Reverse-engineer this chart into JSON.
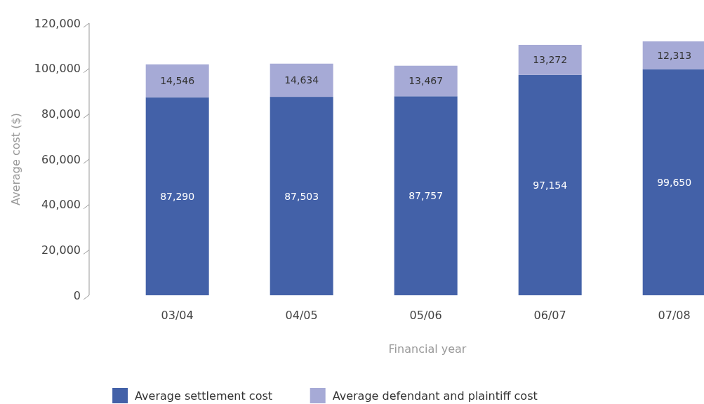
{
  "chart_data": {
    "type": "bar",
    "stacked": true,
    "xlabel": "Financial year",
    "ylabel": "Average cost ($)",
    "categories": [
      "03/04",
      "04/05",
      "05/06",
      "06/07",
      "07/08"
    ],
    "series": [
      {
        "name": "Average settlement cost",
        "color": "#4361a8",
        "values": [
          87290,
          87503,
          87757,
          97154,
          99650
        ],
        "value_labels": [
          "87,290",
          "87,503",
          "87,757",
          "97,154",
          "99,650"
        ]
      },
      {
        "name": "Average defendant and plaintiff cost",
        "color": "#a6aad6",
        "values": [
          14546,
          14634,
          13467,
          13272,
          12313
        ],
        "value_labels": [
          "14,546",
          "14,634",
          "13,467",
          "13,272",
          "12,313"
        ]
      }
    ],
    "ylim": [
      0,
      120000
    ],
    "yticks": [
      {
        "value": 0,
        "label": "0"
      },
      {
        "value": 20000,
        "label": "20,000"
      },
      {
        "value": 40000,
        "label": "40,000"
      },
      {
        "value": 60000,
        "label": "60,000"
      },
      {
        "value": 80000,
        "label": "80,000"
      },
      {
        "value": 100000,
        "label": "100,000"
      },
      {
        "value": 120000,
        "label": "120,000"
      }
    ],
    "legend": "bottom",
    "grid": false
  }
}
